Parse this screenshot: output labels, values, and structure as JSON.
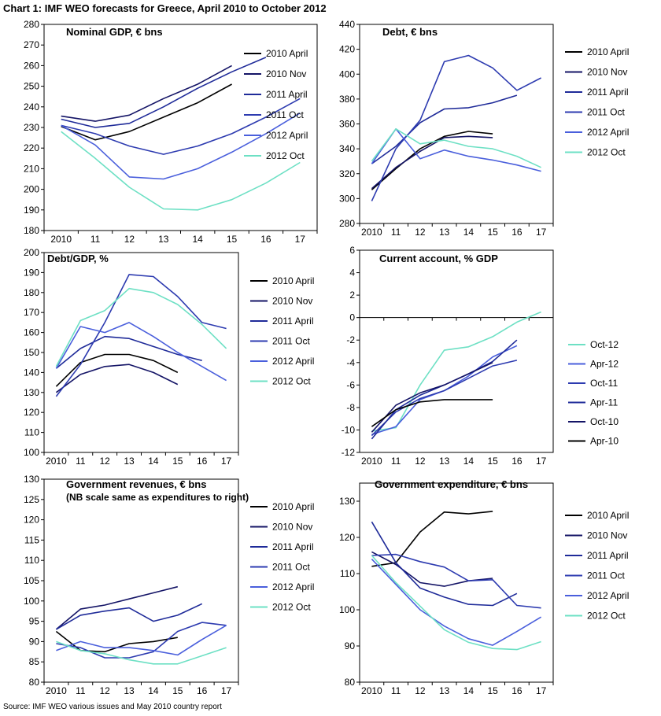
{
  "title": "Chart 1: IMF WEO forecasts for Greece, April 2010 to October 2012",
  "source": "Source: IMF WEO various issues and May 2010 country report",
  "chart_data": [
    {
      "type": "line",
      "title": "Nominal GDP, € bns",
      "note": "",
      "x": [
        2010,
        2011,
        2012,
        2013,
        2014,
        2015,
        2016,
        2017
      ],
      "x_tick_labels": [
        "2010",
        "11",
        "12",
        "13",
        "14",
        "15",
        "16",
        "17"
      ],
      "ylim": [
        180,
        280
      ],
      "yticks": [
        180,
        190,
        200,
        210,
        220,
        230,
        240,
        250,
        260,
        270,
        280
      ],
      "legend_position": "right",
      "series": [
        {
          "name": "2010 April",
          "color": "#000000",
          "values": [
            230.5,
            224,
            228,
            235,
            242,
            251,
            null,
            null
          ]
        },
        {
          "name": "2010 Nov",
          "color": "#141466",
          "values": [
            235.5,
            233,
            236,
            244,
            251,
            260,
            null,
            null
          ]
        },
        {
          "name": "2011 April",
          "color": "#1f2b99",
          "values": [
            234,
            230,
            232,
            240,
            249,
            257,
            264,
            null
          ]
        },
        {
          "name": "2011 Oct",
          "color": "#2d3bb0",
          "values": [
            231,
            227,
            221,
            217,
            221,
            227,
            235,
            244
          ]
        },
        {
          "name": "2012 April",
          "color": "#4a5fdc",
          "values": [
            231,
            221.5,
            206,
            205,
            210,
            218,
            227,
            237
          ]
        },
        {
          "name": "2012 Oct",
          "color": "#6de0c4",
          "values": [
            228,
            215,
            201,
            190.5,
            190,
            195,
            203,
            213
          ]
        }
      ]
    },
    {
      "type": "line",
      "title": "Debt, € bns",
      "note": "",
      "x": [
        2010,
        2011,
        2012,
        2013,
        2014,
        2015,
        2016,
        2017
      ],
      "x_tick_labels": [
        "2010",
        "11",
        "12",
        "13",
        "14",
        "15",
        "16",
        "17"
      ],
      "ylim": [
        280,
        440
      ],
      "yticks": [
        280,
        300,
        320,
        340,
        360,
        380,
        400,
        420,
        440
      ],
      "legend_position": "right",
      "series": [
        {
          "name": "2010 April",
          "color": "#000000",
          "values": [
            307,
            324,
            340,
            350,
            354,
            352,
            null,
            null
          ]
        },
        {
          "name": "2010 Nov",
          "color": "#141466",
          "values": [
            308,
            325,
            338,
            349,
            350,
            349,
            null,
            null
          ]
        },
        {
          "name": "2011 April",
          "color": "#1f2b99",
          "values": [
            328,
            342,
            361,
            372,
            373,
            377,
            383,
            null
          ]
        },
        {
          "name": "2011 Oct",
          "color": "#2d3bb0",
          "values": [
            298,
            340,
            363,
            410,
            415,
            405,
            387,
            397
          ]
        },
        {
          "name": "2012 April",
          "color": "#4a5fdc",
          "values": [
            328,
            356,
            332,
            339,
            334,
            331,
            327,
            322
          ]
        },
        {
          "name": "2012 Oct",
          "color": "#6de0c4",
          "values": [
            330,
            356,
            344,
            347,
            342,
            340,
            334,
            325
          ]
        }
      ]
    },
    {
      "type": "line",
      "title": "Debt/GDP, %",
      "note": "",
      "x": [
        2010,
        2011,
        2012,
        2013,
        2014,
        2015,
        2016,
        2017
      ],
      "x_tick_labels": [
        "2010",
        "11",
        "12",
        "13",
        "14",
        "15",
        "16",
        "17"
      ],
      "ylim": [
        100,
        200
      ],
      "yticks": [
        100,
        110,
        120,
        130,
        140,
        150,
        160,
        170,
        180,
        190,
        200
      ],
      "legend_position": "right",
      "series": [
        {
          "name": "2010 April",
          "color": "#000000",
          "values": [
            133,
            145,
            149,
            149,
            146,
            140,
            null,
            null
          ]
        },
        {
          "name": "2010 Nov",
          "color": "#141466",
          "values": [
            130,
            139,
            143,
            144,
            140,
            134,
            null,
            null
          ]
        },
        {
          "name": "2011 April",
          "color": "#1f2b99",
          "values": [
            142,
            152,
            158,
            157,
            153,
            149,
            146,
            null
          ]
        },
        {
          "name": "2011 Oct",
          "color": "#2d3bb0",
          "values": [
            128,
            144,
            165,
            189,
            188,
            178,
            165,
            162
          ]
        },
        {
          "name": "2012 April",
          "color": "#4a5fdc",
          "values": [
            142,
            163,
            160,
            165,
            158,
            150,
            143,
            136
          ]
        },
        {
          "name": "2012 Oct",
          "color": "#6de0c4",
          "values": [
            143,
            166,
            171,
            182,
            180,
            174,
            164,
            152
          ]
        }
      ]
    },
    {
      "type": "line",
      "title": "Current account, % GDP",
      "note": "",
      "x": [
        2010,
        2011,
        2012,
        2013,
        2014,
        2015,
        2016,
        2017
      ],
      "x_tick_labels": [
        "2010",
        "11",
        "12",
        "13",
        "14",
        "15",
        "16",
        "17"
      ],
      "ylim": [
        -12,
        6
      ],
      "yticks": [
        -12,
        -10,
        -8,
        -6,
        -4,
        -2,
        0,
        2,
        4,
        6
      ],
      "x_axis_at": 0,
      "legend_position": "right",
      "series": [
        {
          "name": "Oct-12",
          "color": "#6de0c4",
          "values": [
            -10.1,
            -9.8,
            -6.0,
            -2.9,
            -2.6,
            -1.7,
            -0.4,
            0.5
          ]
        },
        {
          "name": "Apr-12",
          "color": "#4a5fdc",
          "values": [
            -10.4,
            -9.7,
            -7.3,
            -6.5,
            -5.2,
            -3.5,
            -2.5,
            null
          ]
        },
        {
          "name": "Oct-11",
          "color": "#2d3bb0",
          "values": [
            -10.5,
            -8.4,
            -7.2,
            -6.5,
            -5.4,
            -4.3,
            -3.8,
            null
          ]
        },
        {
          "name": "Apr-11",
          "color": "#1f2b99",
          "values": [
            -10.8,
            -8.2,
            -6.9,
            -6.0,
            -5.0,
            -3.9,
            -2.0,
            null
          ]
        },
        {
          "name": "Oct-10",
          "color": "#141466",
          "values": [
            -10.2,
            -7.8,
            -6.7,
            -6.0,
            -5.0,
            -4.0,
            null,
            null
          ]
        },
        {
          "name": "Apr-10",
          "color": "#000000",
          "values": [
            -9.7,
            -8.2,
            -7.5,
            -7.3,
            -7.3,
            -7.3,
            null,
            null
          ]
        }
      ]
    },
    {
      "type": "line",
      "title": "Government revenues, € bns",
      "note": "(NB scale same as expenditures to right)",
      "x": [
        2010,
        2011,
        2012,
        2013,
        2014,
        2015,
        2016,
        2017
      ],
      "x_tick_labels": [
        "2010",
        "11",
        "12",
        "13",
        "14",
        "15",
        "16",
        "17"
      ],
      "ylim": [
        80,
        130
      ],
      "yticks": [
        80,
        85,
        90,
        95,
        100,
        105,
        110,
        115,
        120,
        125,
        130
      ],
      "legend_position": "right",
      "series": [
        {
          "name": "2010 April",
          "color": "#000000",
          "values": [
            92.5,
            87.8,
            87.5,
            89.5,
            90,
            91,
            null,
            null
          ]
        },
        {
          "name": "2010 Nov",
          "color": "#141466",
          "values": [
            93,
            98,
            99,
            100.5,
            102,
            103.5,
            null,
            null
          ]
        },
        {
          "name": "2011 April",
          "color": "#1f2b99",
          "values": [
            93,
            96.5,
            97.5,
            98.3,
            95,
            96.5,
            99.3,
            null
          ]
        },
        {
          "name": "2011 Oct",
          "color": "#2d3bb0",
          "values": [
            89.5,
            88.5,
            86,
            86,
            87.5,
            92.5,
            94.7,
            94
          ]
        },
        {
          "name": "2012 April",
          "color": "#4a5fdc",
          "values": [
            87.8,
            90,
            88.5,
            88.5,
            87.8,
            86.7,
            90.5,
            94
          ]
        },
        {
          "name": "2012 Oct",
          "color": "#6de0c4",
          "values": [
            90,
            87.8,
            87,
            85.5,
            84.5,
            84.5,
            86.5,
            88.5
          ]
        }
      ]
    },
    {
      "type": "line",
      "title": "Government expenditure, € bns",
      "note": "",
      "x": [
        2010,
        2011,
        2012,
        2013,
        2014,
        2015,
        2016,
        2017
      ],
      "x_tick_labels": [
        "2010",
        "11",
        "12",
        "13",
        "14",
        "15",
        "16",
        "17"
      ],
      "ylim": [
        80,
        135
      ],
      "yticks": [
        80,
        90,
        100,
        110,
        120,
        130
      ],
      "legend_position": "right",
      "series": [
        {
          "name": "2010 April",
          "color": "#000000",
          "values": [
            112,
            113,
            121.5,
            127,
            126.5,
            127.2,
            null,
            null
          ]
        },
        {
          "name": "2010 Nov",
          "color": "#141466",
          "values": [
            116,
            112.5,
            107.5,
            106.5,
            108,
            108.7,
            null,
            null
          ]
        },
        {
          "name": "2011 April",
          "color": "#1f2b99",
          "values": [
            124.3,
            113,
            106,
            103.5,
            101.5,
            101.2,
            104.5,
            null
          ]
        },
        {
          "name": "2011 Oct",
          "color": "#2d3bb0",
          "values": [
            115,
            115.3,
            113.3,
            111.8,
            108,
            108.3,
            101.2,
            100.5
          ]
        },
        {
          "name": "2012 April",
          "color": "#4a5fdc",
          "values": [
            114,
            107,
            100,
            95.5,
            92,
            90.2,
            94,
            98
          ]
        },
        {
          "name": "2012 Oct",
          "color": "#6de0c4",
          "values": [
            115,
            107.5,
            101,
            94.5,
            91,
            89.3,
            89,
            91.2
          ]
        }
      ]
    }
  ]
}
